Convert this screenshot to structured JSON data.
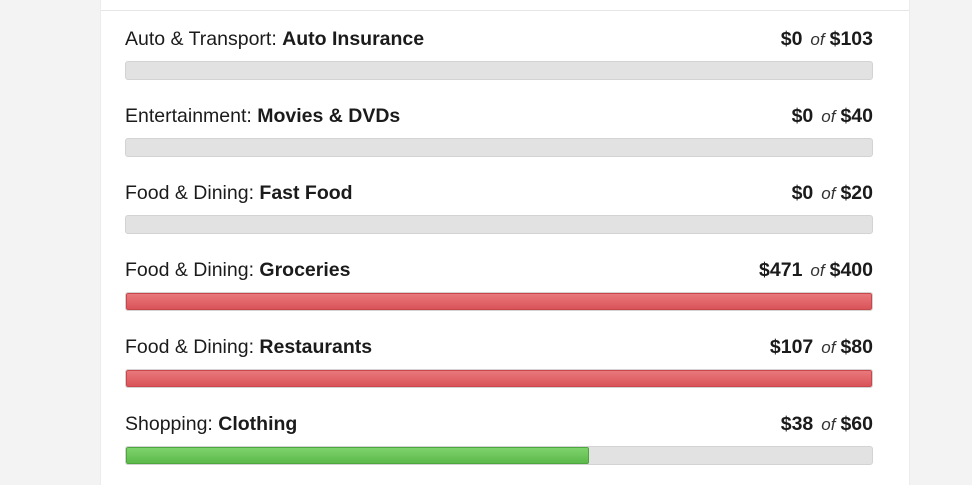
{
  "budgets": [
    {
      "category": "Auto & Transport: ",
      "subcategory": "Auto Insurance",
      "spent": "$0",
      "of": "of",
      "limit": "$103",
      "progress": 0,
      "status": "none"
    },
    {
      "category": "Entertainment: ",
      "subcategory": "Movies & DVDs",
      "spent": "$0",
      "of": "of",
      "limit": "$40",
      "progress": 0,
      "status": "none"
    },
    {
      "category": "Food & Dining: ",
      "subcategory": "Fast Food",
      "spent": "$0",
      "of": "of",
      "limit": "$20",
      "progress": 0,
      "status": "none"
    },
    {
      "category": "Food & Dining: ",
      "subcategory": "Groceries",
      "spent": "$471",
      "of": "of",
      "limit": "$400",
      "progress": 1.0,
      "status": "over"
    },
    {
      "category": "Food & Dining: ",
      "subcategory": "Restaurants",
      "spent": "$107",
      "of": "of",
      "limit": "$80",
      "progress": 1.0,
      "status": "over"
    },
    {
      "category": "Shopping: ",
      "subcategory": "Clothing",
      "spent": "$38",
      "of": "of",
      "limit": "$60",
      "progress": 0.62,
      "status": "under"
    }
  ],
  "colors": {
    "over": "#de5a5f",
    "under": "#6cc95a",
    "track": "#e2e2e2"
  }
}
